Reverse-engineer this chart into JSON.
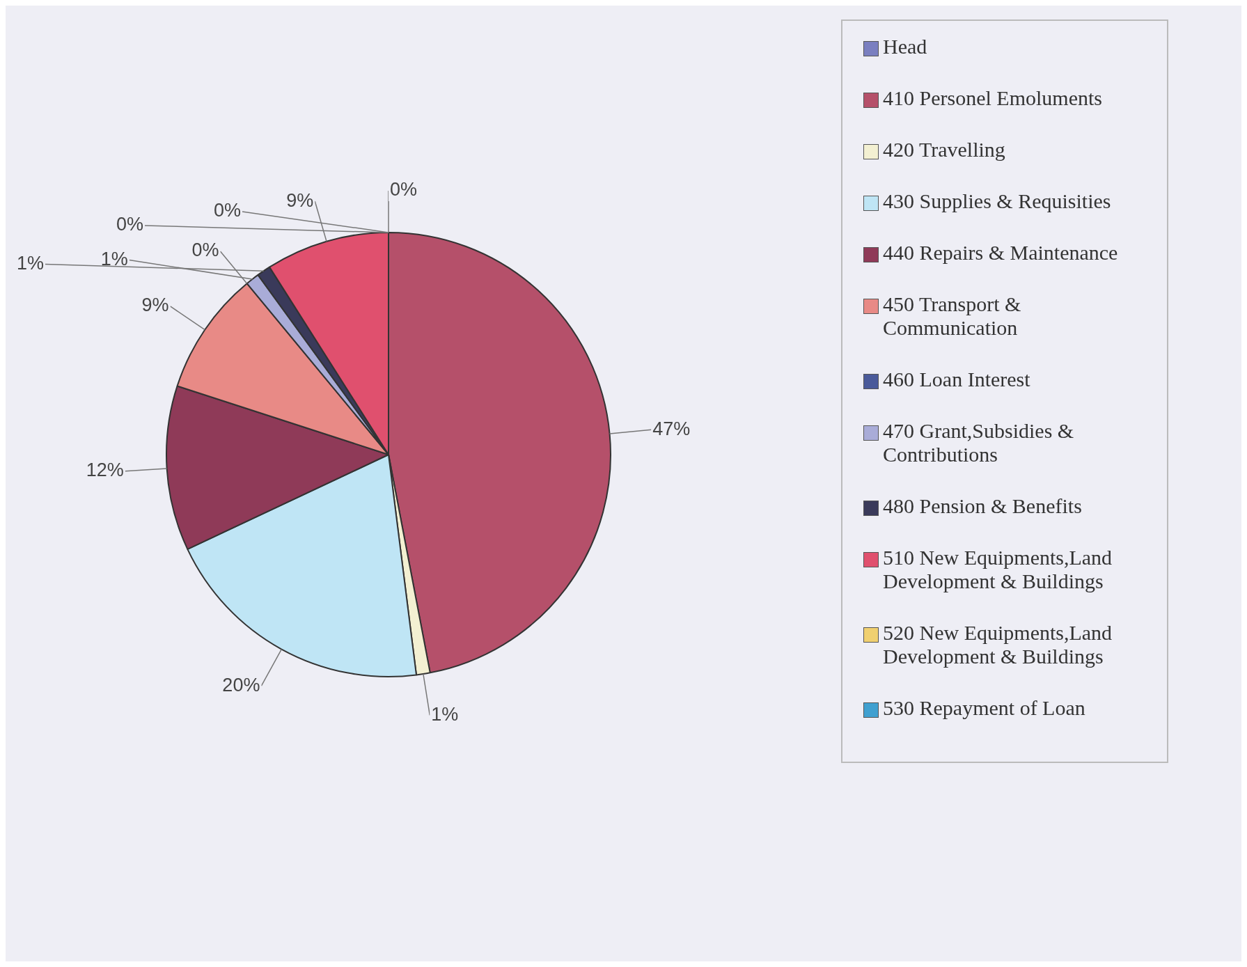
{
  "chart_data": {
    "type": "pie",
    "categories": [
      "Head",
      "410 Personel Emoluments",
      "420 Travelling",
      "430 Supplies & Requisities",
      "440 Repairs & Maintenance",
      "450 Transport & Communication",
      "460 Loan Interest",
      "470 Grant,Subsidies & Contributions",
      "480 Pension & Benefits",
      "510 New Equipments,Land Development & Buildings",
      "520 New Equipments,Land Development & Buildings",
      "530 Repayment of Loan"
    ],
    "values": [
      0,
      47,
      1,
      20,
      12,
      9,
      0,
      1,
      1,
      9,
      0,
      0
    ],
    "value_labels": [
      "0%",
      "47%",
      "1%",
      "20%",
      "12%",
      "9%",
      "0%",
      "1%",
      "1%",
      "9%",
      "0%",
      "0%"
    ],
    "colors": [
      "#7a7fc0",
      "#b5506a",
      "#f3f0d2",
      "#bfe5f5",
      "#8f3a58",
      "#e88a86",
      "#4a5a9a",
      "#a9acd8",
      "#3a3a5a",
      "#e0506e",
      "#f0d070",
      "#40a0d0"
    ],
    "legend": "right"
  }
}
